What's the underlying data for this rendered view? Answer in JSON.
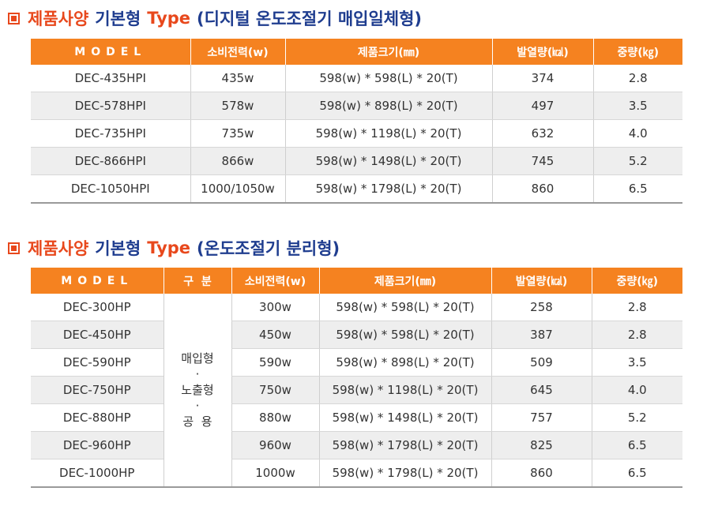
{
  "section1": {
    "title_parts": [
      "제품사양",
      "기본형",
      "Type",
      "(디지털 온도조절기 매입일체형)"
    ],
    "headers": [
      "MODEL",
      "소비전력(w)",
      "제품크기(㎜)",
      "발열량(㎉)",
      "중량(㎏)"
    ],
    "rows": [
      [
        "DEC-435HPI",
        "435w",
        "598(w) * 598(L) * 20(T)",
        "374",
        "2.8"
      ],
      [
        "DEC-578HPI",
        "578w",
        "598(w) * 898(L) * 20(T)",
        "497",
        "3.5"
      ],
      [
        "DEC-735HPI",
        "735w",
        "598(w) * 1198(L) * 20(T)",
        "632",
        "4.0"
      ],
      [
        "DEC-866HPI",
        "866w",
        "598(w) * 1498(L) * 20(T)",
        "745",
        "5.2"
      ],
      [
        "DEC-1050HPI",
        "1000/1050w",
        "598(w) * 1798(L) * 20(T)",
        "860",
        "6.5"
      ]
    ]
  },
  "section2": {
    "title_parts": [
      "제품사양",
      "기본형",
      "Type",
      "(온도조절기 분리형)"
    ],
    "headers": [
      "MODEL",
      "구  분",
      "소비전력(w)",
      "제품크기(㎜)",
      "발열량(㎉)",
      "중량(㎏)"
    ],
    "kind_lines": [
      "매입형",
      "·",
      "노출형",
      "·",
      "공  용"
    ],
    "rows": [
      [
        "DEC-300HP",
        "300w",
        "598(w) * 598(L) * 20(T)",
        "258",
        "2.8"
      ],
      [
        "DEC-450HP",
        "450w",
        "598(w) * 598(L) * 20(T)",
        "387",
        "2.8"
      ],
      [
        "DEC-590HP",
        "590w",
        "598(w) * 898(L) * 20(T)",
        "509",
        "3.5"
      ],
      [
        "DEC-750HP",
        "750w",
        "598(w) * 1198(L) * 20(T)",
        "645",
        "4.0"
      ],
      [
        "DEC-880HP",
        "880w",
        "598(w) * 1498(L) * 20(T)",
        "757",
        "5.2"
      ],
      [
        "DEC-960HP",
        "960w",
        "598(w) * 1798(L) * 20(T)",
        "825",
        "6.5"
      ],
      [
        "DEC-1000HP",
        "1000w",
        "598(w) * 1798(L) * 20(T)",
        "860",
        "6.5"
      ]
    ]
  }
}
